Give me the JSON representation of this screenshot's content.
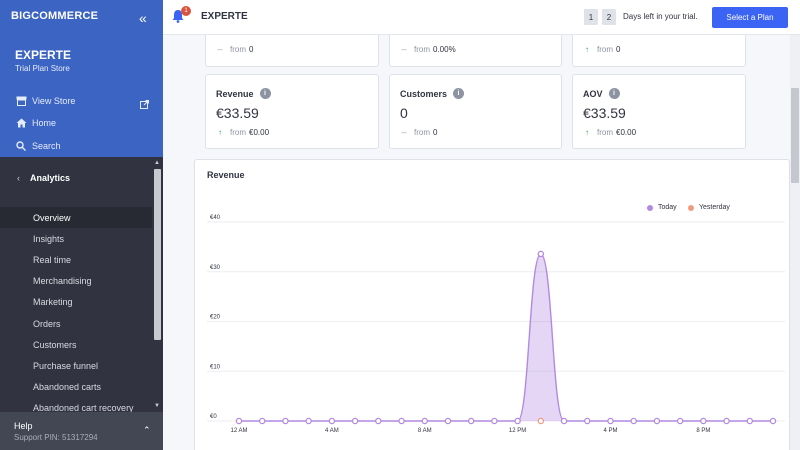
{
  "sidebar": {
    "logo": "BIGCOMMERCE",
    "store_name": "EXPERTE",
    "store_plan": "Trial Plan Store",
    "links": [
      {
        "label": "View Store",
        "icon": "storefront-icon"
      },
      {
        "label": "Home",
        "icon": "home-icon"
      },
      {
        "label": "Search",
        "icon": "search-icon"
      }
    ],
    "section_title": "Analytics",
    "items": [
      {
        "label": "Overview",
        "active": true
      },
      {
        "label": "Insights"
      },
      {
        "label": "Real time"
      },
      {
        "label": "Merchandising"
      },
      {
        "label": "Marketing"
      },
      {
        "label": "Orders"
      },
      {
        "label": "Customers"
      },
      {
        "label": "Purchase funnel"
      },
      {
        "label": "Abandoned carts"
      },
      {
        "label": "Abandoned cart recovery"
      }
    ],
    "help_title": "Help",
    "support_pin": "Support PIN: 51317294"
  },
  "topbar": {
    "notification_count": "1",
    "title": "EXPERTE",
    "days": [
      "1",
      "2"
    ],
    "trial_text": "Days left in your trial.",
    "plan_button": "Select a Plan"
  },
  "top_row": [
    {
      "prefix": "--",
      "from_label": "from",
      "from_value": "0"
    },
    {
      "prefix": "--",
      "from_label": "from",
      "from_value": "0.00%"
    },
    {
      "prefix": "up",
      "from_label": "from",
      "from_value": "0"
    }
  ],
  "metrics": [
    {
      "label": "Revenue",
      "value": "€33.59",
      "trend": "up",
      "from_label": "from",
      "from_value": "€0.00"
    },
    {
      "label": "Customers",
      "value": "0",
      "trend": "--",
      "from_label": "from",
      "from_value": "0"
    },
    {
      "label": "AOV",
      "value": "€33.59",
      "trend": "up",
      "from_label": "from",
      "from_value": "€0.00"
    }
  ],
  "colors": {
    "sidebar_blue": "#3c64c3",
    "sidebar_dark": "#313440",
    "accent": "#3c64f4",
    "today": "#b28ae0",
    "yesterday": "#f29a81",
    "positive": "#2ea24e"
  },
  "chart_data": {
    "type": "area",
    "title": "Revenue",
    "legend": [
      "Today",
      "Yesterday"
    ],
    "legend_position": "top-right",
    "y_ticks": [
      "€0",
      "€10",
      "€20",
      "€30",
      "€40"
    ],
    "ylim": [
      0,
      40
    ],
    "x_tick_labels": [
      "12 AM",
      "4 AM",
      "8 AM",
      "12 PM",
      "4 PM",
      "8 PM"
    ],
    "x_hours": [
      0,
      1,
      2,
      3,
      4,
      5,
      6,
      7,
      8,
      9,
      10,
      11,
      12,
      13,
      14,
      15,
      16,
      17,
      18,
      19,
      20,
      21,
      22,
      23
    ],
    "series": [
      {
        "name": "Today",
        "values": [
          0,
          0,
          0,
          0,
          0,
          0,
          0,
          0,
          0,
          0,
          0,
          0,
          0,
          33.59,
          0,
          0,
          0,
          0,
          0,
          0,
          0,
          0,
          0,
          0
        ]
      },
      {
        "name": "Yesterday",
        "values": [
          null,
          null,
          null,
          null,
          null,
          null,
          null,
          null,
          null,
          null,
          null,
          null,
          null,
          0,
          null,
          null,
          null,
          null,
          null,
          null,
          null,
          null,
          null,
          null
        ]
      }
    ],
    "grid": true
  }
}
